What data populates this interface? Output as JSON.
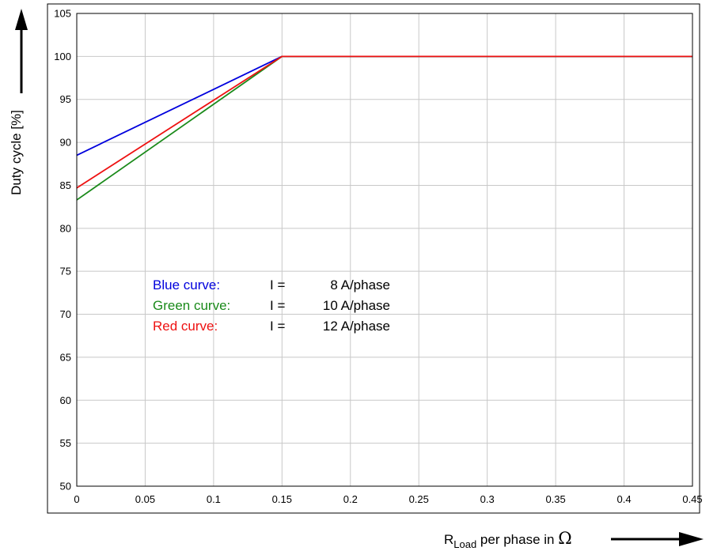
{
  "chart_data": {
    "type": "line",
    "title": "",
    "ylabel": "Duty cycle [%]",
    "xlabel": {
      "prefix": "R",
      "subscript": "Load",
      "suffix": " per phase in ",
      "unit_symbol": "Ω"
    },
    "xlim": [
      0,
      0.45
    ],
    "ylim": [
      50,
      105
    ],
    "x_ticks": [
      "0",
      "0.05",
      "0.1",
      "0.15",
      "0.2",
      "0.25",
      "0.3",
      "0.35",
      "0.4",
      "0.45"
    ],
    "y_ticks": [
      "50",
      "55",
      "60",
      "65",
      "70",
      "75",
      "80",
      "85",
      "90",
      "95",
      "100",
      "105"
    ],
    "grid": true,
    "series": [
      {
        "color": "#0000dd",
        "x": [
          0,
          0.15,
          0.45
        ],
        "y": [
          88.5,
          100,
          100
        ]
      },
      {
        "color": "#1a8a1a",
        "x": [
          0,
          0.15,
          0.45
        ],
        "y": [
          83.3,
          100,
          100
        ]
      },
      {
        "color": "#ee1111",
        "x": [
          0,
          0.15,
          0.45
        ],
        "y": [
          84.7,
          100,
          100
        ]
      }
    ],
    "legend": {
      "placement": "center-left",
      "entries": [
        {
          "label": "Blue curve:",
          "eq": "I =",
          "value": "8 A/phase",
          "color": "#0000dd"
        },
        {
          "label": "Green curve:",
          "eq": "I =",
          "value": "10 A/phase",
          "color": "#1a8a1a"
        },
        {
          "label": "Red curve:",
          "eq": "I =",
          "value": "12 A/phase",
          "color": "#ee1111"
        }
      ]
    }
  }
}
